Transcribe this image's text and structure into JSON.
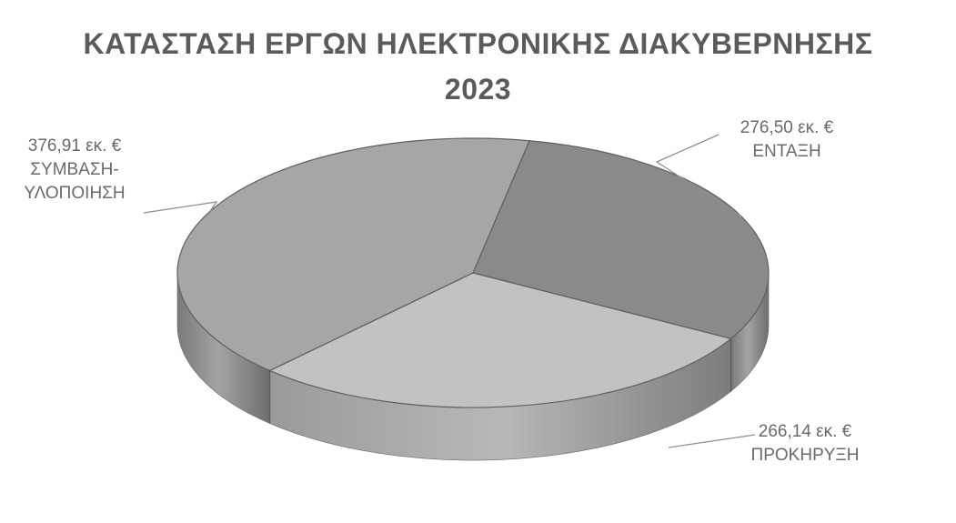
{
  "chart_data": {
    "type": "pie",
    "title": "ΚΑΤΑΣΤΑΣΗ ΕΡΓΩΝ ΗΛΕΚΤΡΟΝΙΚΗΣ ΔΙΑΚΥΒΕΡΝΗΣΗΣ",
    "subtitle": "2023",
    "slices": [
      {
        "name": "ΕΝΤΑΞΗ",
        "value": 276.5,
        "value_label": "276,50 εκ. €",
        "color": "#8a8a8a"
      },
      {
        "name": "ΠΡΟΚΗΡΥΞΗ",
        "value": 266.14,
        "value_label": "266,14 εκ. €",
        "color": "#c2c2c2"
      },
      {
        "name": "ΣΥΜΒΑΣΗ-ΥΛΟΠΟΙΗΣΗ",
        "name_lines": [
          "ΣΥΜΒΑΣΗ-",
          "ΥΛΟΠΟΙΗΣΗ"
        ],
        "value": 376.91,
        "value_label": "376,91 εκ. €",
        "color": "#a6a6a6"
      }
    ],
    "legend": "none",
    "style": "3d"
  }
}
